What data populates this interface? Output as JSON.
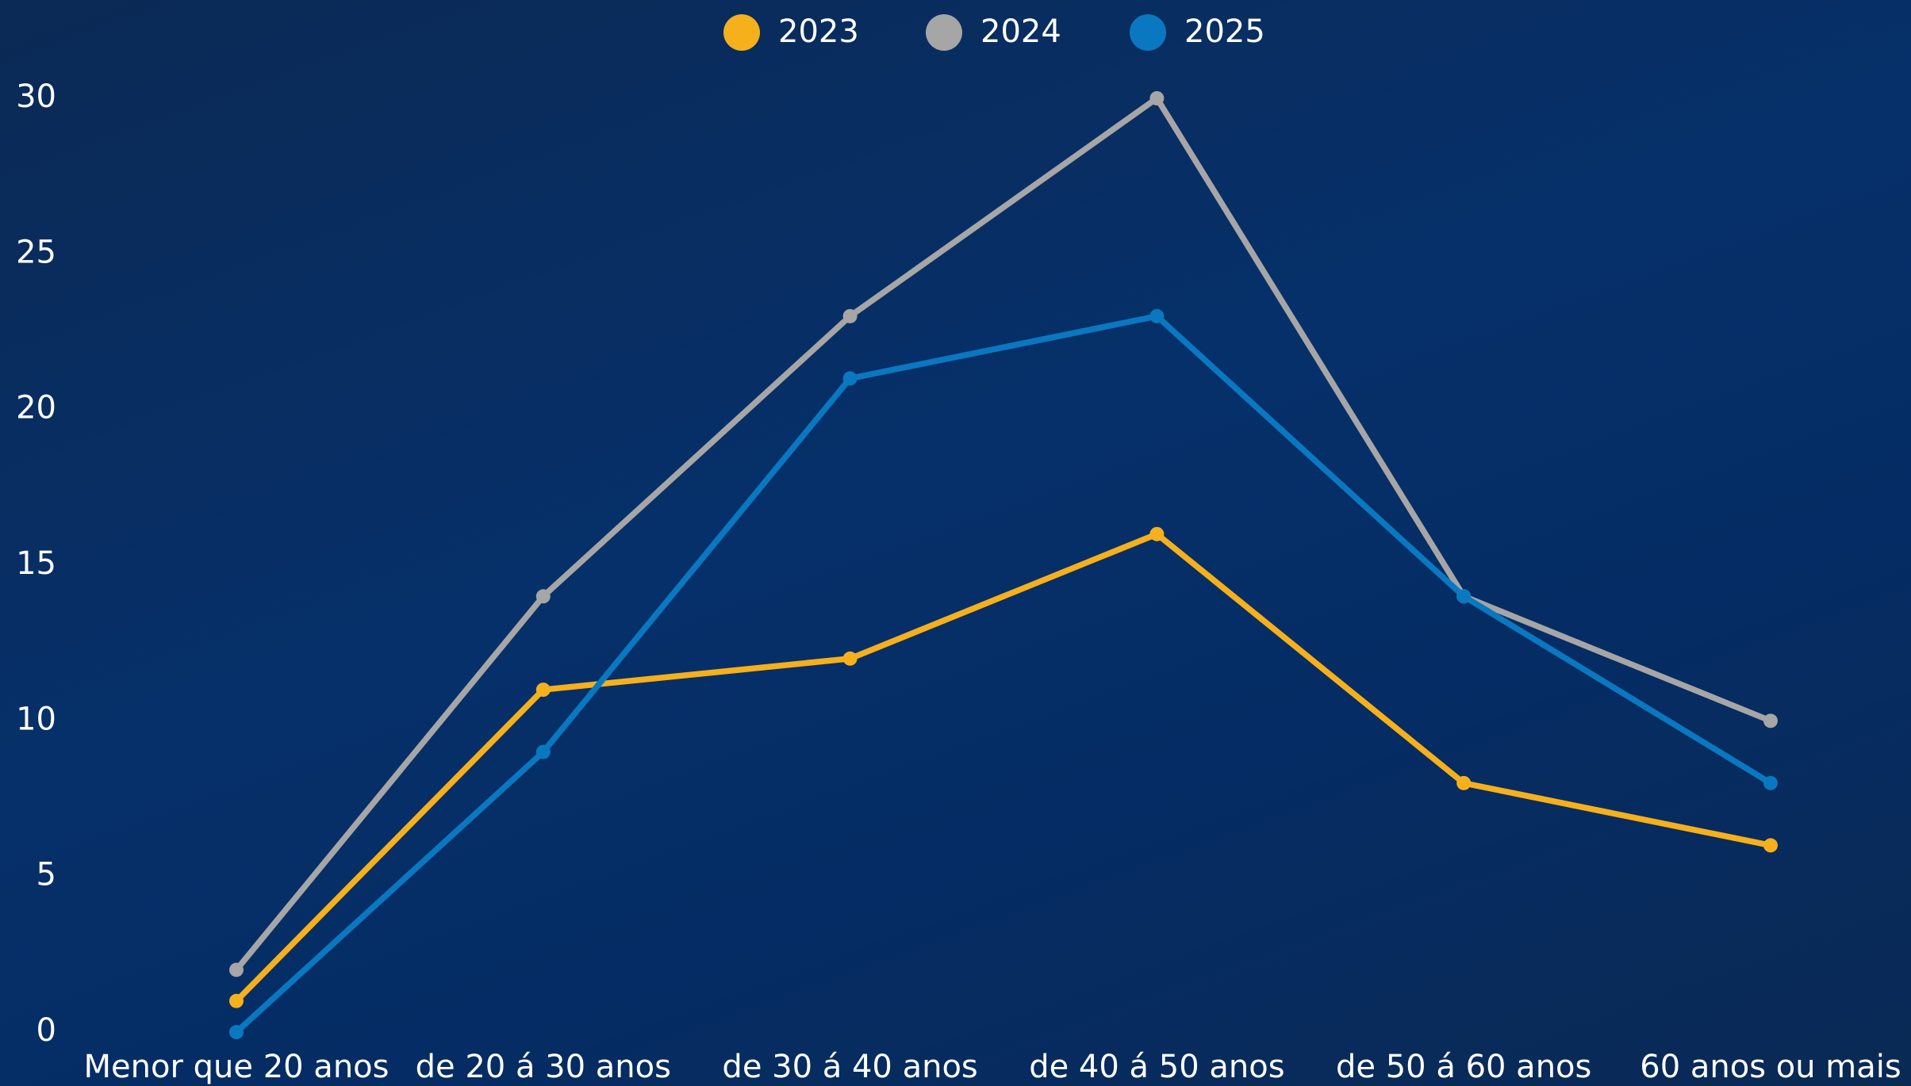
{
  "chart_data": {
    "type": "line",
    "categories": [
      "Menor que 20 anos",
      "de 20 á 30 anos",
      "de 30 á 40 anos",
      "de 40 á 50 anos",
      "de 50 á 60 anos",
      "60 anos ou mais"
    ],
    "series": [
      {
        "name": "2023",
        "color": "#f5b01c",
        "values": [
          1,
          11,
          12,
          16,
          8,
          6
        ]
      },
      {
        "name": "2024",
        "color": "#a6a6a6",
        "values": [
          2,
          14,
          23,
          30,
          14,
          10
        ]
      },
      {
        "name": "2025",
        "color": "#0a78c0",
        "values": [
          0,
          9,
          21,
          23,
          14,
          8
        ]
      }
    ],
    "ylim": [
      0,
      30
    ],
    "yticks": [
      0,
      5,
      10,
      15,
      20,
      25,
      30
    ],
    "grid": false,
    "legend": "top"
  }
}
